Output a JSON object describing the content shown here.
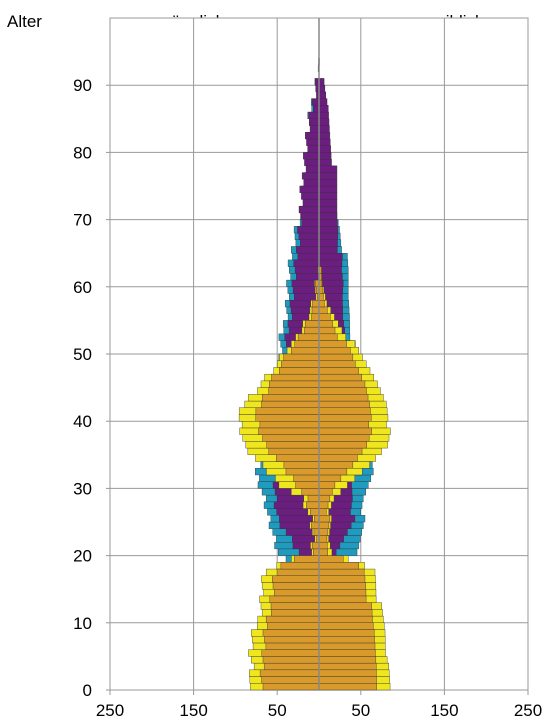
{
  "chart_data": {
    "type": "bar",
    "title": "",
    "header": {
      "y_axis_label": "Alter",
      "left_label": "männlich",
      "right_label": "weiblich"
    },
    "y_axis": {
      "label": "Alter",
      "range": [
        0,
        99
      ],
      "ticks": [
        0,
        10,
        20,
        30,
        40,
        50,
        60,
        70,
        80,
        90
      ]
    },
    "x_axis": {
      "range_each_side": [
        0,
        250
      ],
      "tick_positions": [
        0,
        50,
        150,
        250
      ],
      "tick_labels": [
        "250",
        "150",
        "50",
        "50",
        "150",
        "250"
      ]
    },
    "grid": true,
    "legend": "none",
    "series_colors": {
      "yellow": "#F0E61E",
      "orange": "#D99A2C",
      "purple": "#6C1E80",
      "teal": "#1F9BC0"
    },
    "series": [
      {
        "color": "teal",
        "male": [
          [
            0,
            0
          ],
          [
            18,
            23
          ],
          [
            20,
            50
          ],
          [
            25,
            60
          ],
          [
            28,
            65
          ],
          [
            30,
            70
          ],
          [
            32,
            75
          ],
          [
            35,
            68
          ],
          [
            38,
            62
          ],
          [
            40,
            58
          ],
          [
            42,
            52
          ],
          [
            45,
            48
          ],
          [
            48,
            46
          ],
          [
            52,
            45
          ],
          [
            55,
            40
          ],
          [
            58,
            38
          ],
          [
            62,
            35
          ],
          [
            65,
            32
          ],
          [
            68,
            28
          ],
          [
            70,
            22
          ],
          [
            74,
            18
          ],
          [
            78,
            14
          ],
          [
            82,
            12
          ],
          [
            86,
            10
          ],
          [
            88,
            6
          ],
          [
            90,
            3
          ],
          [
            92,
            1
          ],
          [
            94,
            0
          ]
        ],
        "female": [
          [
            0,
            0
          ],
          [
            18,
            20
          ],
          [
            20,
            45
          ],
          [
            25,
            52
          ],
          [
            28,
            55
          ],
          [
            30,
            60
          ],
          [
            32,
            65
          ],
          [
            35,
            60
          ],
          [
            38,
            55
          ],
          [
            40,
            52
          ],
          [
            42,
            50
          ],
          [
            45,
            45
          ],
          [
            48,
            42
          ],
          [
            52,
            40
          ],
          [
            55,
            38
          ],
          [
            58,
            35
          ],
          [
            62,
            33
          ],
          [
            65,
            30
          ],
          [
            68,
            26
          ],
          [
            70,
            22
          ],
          [
            74,
            18
          ],
          [
            78,
            15
          ],
          [
            82,
            12
          ],
          [
            86,
            10
          ],
          [
            88,
            6
          ],
          [
            90,
            3
          ],
          [
            92,
            1
          ],
          [
            94,
            0
          ]
        ]
      },
      {
        "color": "purple",
        "male": [
          [
            0,
            0
          ],
          [
            18,
            8
          ],
          [
            20,
            25
          ],
          [
            25,
            50
          ],
          [
            28,
            52
          ],
          [
            30,
            52
          ],
          [
            32,
            50
          ],
          [
            35,
            45
          ],
          [
            38,
            40
          ],
          [
            40,
            38
          ],
          [
            42,
            40
          ],
          [
            45,
            42
          ],
          [
            48,
            40
          ],
          [
            52,
            38
          ],
          [
            55,
            35
          ],
          [
            58,
            32
          ],
          [
            60,
            30
          ],
          [
            62,
            28
          ],
          [
            65,
            26
          ],
          [
            68,
            24
          ],
          [
            70,
            22
          ],
          [
            74,
            20
          ],
          [
            78,
            18
          ],
          [
            82,
            14
          ],
          [
            86,
            8
          ],
          [
            88,
            6
          ],
          [
            90,
            3
          ],
          [
            92,
            1
          ],
          [
            94,
            0
          ]
        ],
        "female": [
          [
            0,
            0
          ],
          [
            18,
            5
          ],
          [
            20,
            20
          ],
          [
            25,
            40
          ],
          [
            28,
            42
          ],
          [
            30,
            40
          ],
          [
            32,
            38
          ],
          [
            35,
            35
          ],
          [
            38,
            32
          ],
          [
            40,
            32
          ],
          [
            42,
            35
          ],
          [
            45,
            40
          ],
          [
            48,
            38
          ],
          [
            52,
            35
          ],
          [
            55,
            30
          ],
          [
            58,
            28
          ],
          [
            60,
            28
          ],
          [
            62,
            25
          ],
          [
            65,
            25
          ],
          [
            68,
            24
          ],
          [
            70,
            22
          ],
          [
            74,
            20
          ],
          [
            78,
            18
          ],
          [
            82,
            14
          ],
          [
            86,
            10
          ],
          [
            88,
            6
          ],
          [
            90,
            3
          ],
          [
            92,
            1
          ],
          [
            94,
            0
          ]
        ]
      },
      {
        "color": "yellow",
        "male": [
          [
            0,
            85
          ],
          [
            3,
            80
          ],
          [
            5,
            82
          ],
          [
            8,
            78
          ],
          [
            10,
            72
          ],
          [
            12,
            70
          ],
          [
            15,
            68
          ],
          [
            17,
            65
          ],
          [
            18,
            50
          ],
          [
            20,
            10
          ],
          [
            22,
            8
          ],
          [
            25,
            10
          ],
          [
            28,
            20
          ],
          [
            30,
            45
          ],
          [
            33,
            70
          ],
          [
            36,
            90
          ],
          [
            40,
            95
          ],
          [
            42,
            90
          ],
          [
            45,
            70
          ],
          [
            48,
            50
          ],
          [
            50,
            40
          ],
          [
            52,
            25
          ],
          [
            55,
            15
          ],
          [
            57,
            8
          ],
          [
            60,
            3
          ],
          [
            62,
            1
          ],
          [
            64,
            0
          ]
        ],
        "female": [
          [
            0,
            88
          ],
          [
            3,
            85
          ],
          [
            5,
            80
          ],
          [
            8,
            78
          ],
          [
            10,
            75
          ],
          [
            12,
            72
          ],
          [
            15,
            70
          ],
          [
            17,
            68
          ],
          [
            18,
            55
          ],
          [
            20,
            15
          ],
          [
            22,
            10
          ],
          [
            25,
            12
          ],
          [
            28,
            20
          ],
          [
            30,
            35
          ],
          [
            33,
            60
          ],
          [
            36,
            80
          ],
          [
            40,
            85
          ],
          [
            42,
            82
          ],
          [
            45,
            70
          ],
          [
            48,
            55
          ],
          [
            50,
            45
          ],
          [
            52,
            35
          ],
          [
            55,
            20
          ],
          [
            57,
            10
          ],
          [
            60,
            3
          ],
          [
            62,
            1
          ],
          [
            64,
            0
          ]
        ]
      },
      {
        "color": "orange",
        "male": [
          [
            0,
            70
          ],
          [
            3,
            68
          ],
          [
            5,
            66
          ],
          [
            8,
            64
          ],
          [
            10,
            62
          ],
          [
            12,
            58
          ],
          [
            15,
            55
          ],
          [
            17,
            52
          ],
          [
            18,
            45
          ],
          [
            20,
            8
          ],
          [
            22,
            6
          ],
          [
            25,
            8
          ],
          [
            28,
            15
          ],
          [
            30,
            25
          ],
          [
            33,
            45
          ],
          [
            36,
            65
          ],
          [
            40,
            75
          ],
          [
            42,
            70
          ],
          [
            45,
            60
          ],
          [
            48,
            45
          ],
          [
            50,
            35
          ],
          [
            52,
            22
          ],
          [
            55,
            12
          ],
          [
            57,
            6
          ],
          [
            60,
            2
          ],
          [
            62,
            1
          ],
          [
            64,
            0
          ]
        ],
        "female": [
          [
            0,
            72
          ],
          [
            3,
            70
          ],
          [
            5,
            68
          ],
          [
            8,
            65
          ],
          [
            10,
            62
          ],
          [
            12,
            60
          ],
          [
            15,
            58
          ],
          [
            17,
            55
          ],
          [
            18,
            48
          ],
          [
            20,
            10
          ],
          [
            22,
            8
          ],
          [
            25,
            10
          ],
          [
            28,
            15
          ],
          [
            30,
            20
          ],
          [
            33,
            40
          ],
          [
            36,
            55
          ],
          [
            40,
            65
          ],
          [
            42,
            62
          ],
          [
            45,
            55
          ],
          [
            48,
            42
          ],
          [
            50,
            35
          ],
          [
            52,
            25
          ],
          [
            55,
            15
          ],
          [
            57,
            7
          ],
          [
            60,
            2
          ],
          [
            62,
            1
          ],
          [
            64,
            0
          ]
        ]
      }
    ]
  }
}
